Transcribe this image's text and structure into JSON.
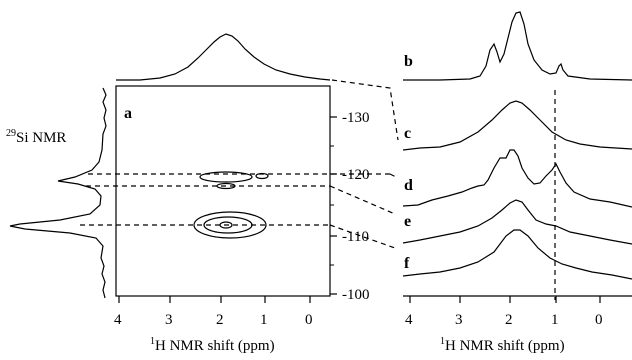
{
  "figure": {
    "panel_labels": {
      "a": "a",
      "b": "b",
      "c": "c",
      "d": "d",
      "e": "e",
      "f": "f"
    },
    "y_axis_label_html_prefix": "29",
    "y_axis_label_rest": "Si NMR",
    "x_axis_label_sup": "1",
    "x_axis_label_rest": "H NMR shift (ppm)",
    "x_ticks_left": [
      "4",
      "3",
      "2",
      "1",
      "0"
    ],
    "x_ticks_right": [
      "4",
      "3",
      "2",
      "1",
      "0"
    ],
    "y_ticks": [
      "-130",
      "-120",
      "-110",
      "-100"
    ]
  },
  "chart_data": {
    "type": "2D NMR correlation map with projections and 1D slices",
    "x_axis": {
      "label": "1H NMR shift (ppm)",
      "range": [
        4.2,
        -0.6
      ],
      "ticks": [
        4,
        3,
        2,
        1,
        0
      ]
    },
    "y_axis": {
      "label": "29Si NMR",
      "range": [
        -136,
        -100
      ],
      "ticks": [
        -130,
        -120,
        -110,
        -100
      ]
    },
    "contours": [
      {
        "si_ppm": -111.5,
        "h_ppm": 1.7,
        "levels": 3
      },
      {
        "si_ppm": -121.5,
        "h_ppm": 1.9,
        "levels": 2
      },
      {
        "si_ppm": -121.5,
        "h_ppm": 0.9,
        "levels": 1
      }
    ],
    "traces": [
      "b",
      "c",
      "d",
      "e",
      "f"
    ],
    "vertical_dashed_line_h_ppm": 0.9
  }
}
